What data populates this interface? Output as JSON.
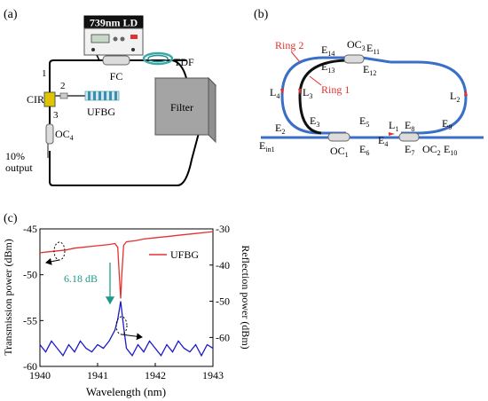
{
  "panel_a": {
    "label": "(a)",
    "ld_label": "739nm LD",
    "fc": "FC",
    "tdf": "TDF",
    "filter": "Filter",
    "cir": "CIR",
    "port1": "1",
    "port2": "2",
    "port3": "3",
    "ufbg": "UFBG",
    "oc4": "OC",
    "oc4_sub": "4",
    "output_pct": "10%",
    "output_word": "output"
  },
  "panel_b": {
    "label": "(b)",
    "ring2": "Ring 2",
    "ring1": "Ring 1",
    "oc3": "OC",
    "oc3_sub": "3",
    "oc1": "OC",
    "oc1_sub": "1",
    "oc2": "OC",
    "oc2_sub": "2",
    "l1": "L",
    "l1_sub": "1",
    "l2": "L",
    "l2_sub": "2",
    "l3": "L",
    "l3_sub": "3",
    "l4": "L",
    "l4_sub": "4",
    "e": "E",
    "e_subs": [
      "2",
      "3",
      "4",
      "5",
      "6",
      "7",
      "8",
      "9",
      "10",
      "11",
      "12",
      "13",
      "14"
    ],
    "ein_sub": "in1"
  },
  "panel_c": {
    "label": "(c)",
    "legend": "UFBG",
    "annotation": "6.18 dB",
    "xlabel": "Wavelength (nm)",
    "ylabel_left": "Transmission power (dBm)",
    "ylabel_right": "Reflection power (dBm)",
    "colors": {
      "transmission": "#e53030",
      "reflection": "#1a1acc",
      "annotation": "#1f9a8a"
    }
  },
  "chart_data": {
    "type": "line",
    "xlabel": "Wavelength (nm)",
    "ylabel": "Transmission power (dBm)",
    "y2label": "Reflection power (dBm)",
    "xlim": [
      1940,
      1943
    ],
    "ylim": [
      -60,
      -45
    ],
    "y2lim": [
      -68,
      -30
    ],
    "xticks": [
      1940,
      1941,
      1942,
      1943
    ],
    "yticks": [
      -60,
      -55,
      -50,
      -45
    ],
    "y2ticks": [
      -60,
      -50,
      -40,
      -30
    ],
    "legend_position": "top-right",
    "series": [
      {
        "name": "UFBG",
        "axis": "left",
        "x": [
          1940.0,
          1940.15,
          1940.3,
          1940.45,
          1940.6,
          1940.75,
          1940.9,
          1941.05,
          1941.2,
          1941.3,
          1941.35,
          1941.38,
          1941.4,
          1941.42,
          1941.45,
          1941.5,
          1941.65,
          1941.8,
          1941.95,
          1942.1,
          1942.25,
          1942.4,
          1942.55,
          1942.7,
          1942.85,
          1943.0
        ],
        "y": [
          -47.6,
          -47.5,
          -47.4,
          -47.3,
          -47.1,
          -47.0,
          -46.9,
          -46.8,
          -46.7,
          -46.6,
          -47.0,
          -50.5,
          -52.6,
          -50.0,
          -46.8,
          -46.4,
          -46.3,
          -46.1,
          -46.0,
          -45.9,
          -45.8,
          -45.7,
          -45.6,
          -45.5,
          -45.4,
          -45.3
        ]
      },
      {
        "axis": "right",
        "x": [
          1940.0,
          1940.1,
          1940.2,
          1940.3,
          1940.4,
          1940.5,
          1940.6,
          1940.7,
          1940.8,
          1940.9,
          1941.0,
          1941.1,
          1941.2,
          1941.3,
          1941.35,
          1941.4,
          1941.45,
          1941.5,
          1941.6,
          1941.7,
          1941.8,
          1941.9,
          1942.0,
          1942.1,
          1942.2,
          1942.3,
          1942.4,
          1942.5,
          1942.6,
          1942.7,
          1942.8,
          1942.9,
          1943.0
        ],
        "y": [
          -62,
          -64,
          -61,
          -63,
          -65,
          -62,
          -64,
          -61,
          -63,
          -64,
          -62,
          -63,
          -61,
          -58,
          -55,
          -50,
          -57,
          -63,
          -65,
          -62,
          -64,
          -61,
          -63,
          -65,
          -62,
          -64,
          -61,
          -63,
          -64,
          -62,
          -65,
          -62,
          -63
        ]
      }
    ]
  }
}
